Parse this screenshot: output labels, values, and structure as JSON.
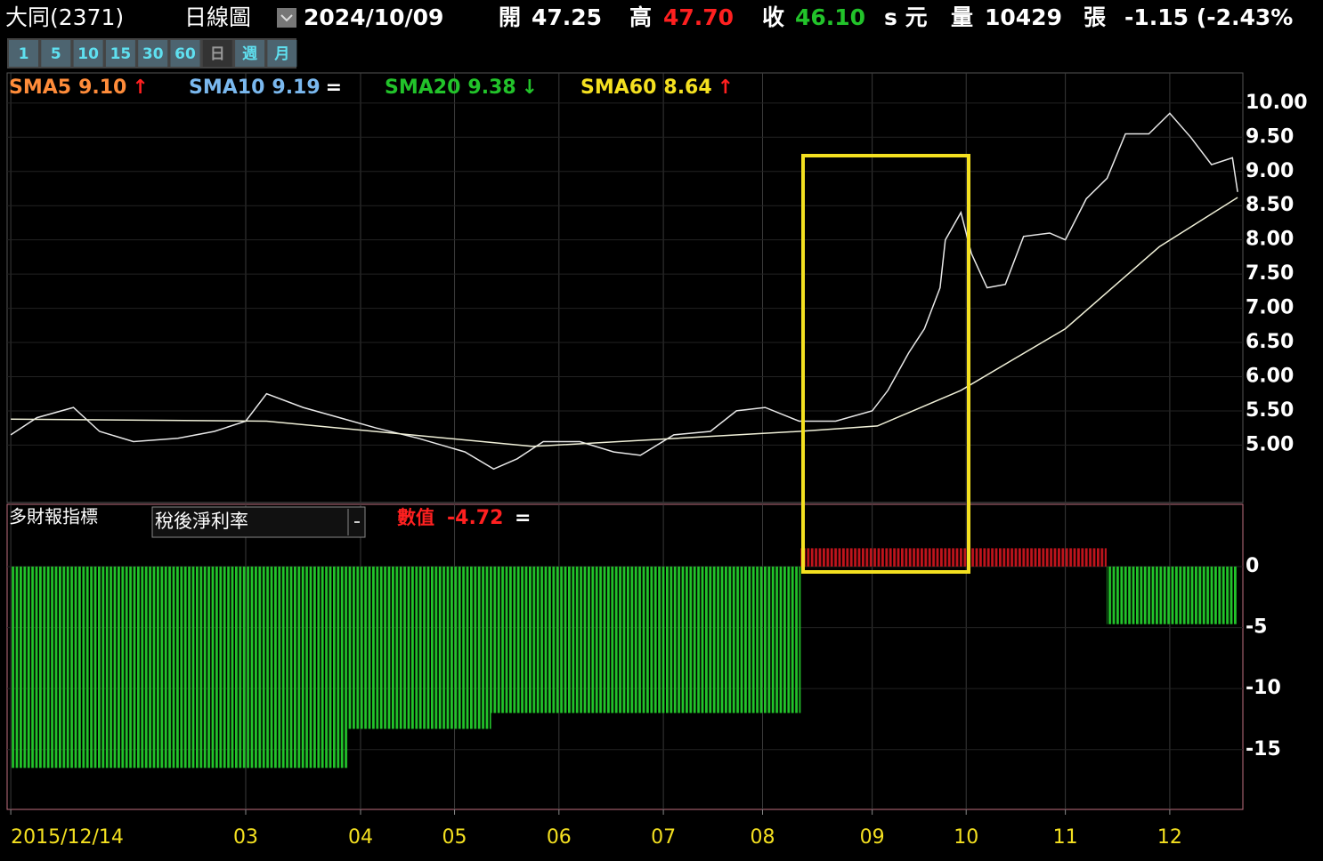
{
  "header": {
    "stock": "大同(2371)",
    "period": "日線圖",
    "date": "2024/10/09",
    "open_label": "開",
    "open": "47.25",
    "high_label": "高",
    "high": "47.70",
    "close_label": "收",
    "close": "46.10",
    "unit": "s 元",
    "volume_label": "量",
    "volume": "10429",
    "volume_unit": "張",
    "change": "-1.15 (-2.43%"
  },
  "toolbar": [
    "1",
    "5",
    "10",
    "15",
    "30",
    "60",
    "日",
    "週",
    "月"
  ],
  "chart_data": [
    {
      "type": "line",
      "readouts": [
        {
          "name": "SMA5",
          "value": "9.10",
          "arrow": "↑",
          "color": "#ff8c3a",
          "arrow_color": "#ff2020"
        },
        {
          "name": "SMA10",
          "value": "9.19",
          "arrow": "=",
          "color": "#7ab8ee",
          "arrow_color": "#ffffff"
        },
        {
          "name": "SMA20",
          "value": "9.38",
          "arrow": "↓",
          "color": "#22c32a",
          "arrow_color": "#22c32a"
        },
        {
          "name": "SMA60",
          "value": "8.64",
          "arrow": "↑",
          "color": "#f4e020",
          "arrow_color": "#ff2020"
        }
      ],
      "series": [
        {
          "color": "#e8e8e8",
          "x": [
            0,
            5,
            12,
            17,
            23.5,
            32,
            39,
            45,
            49,
            56,
            63,
            70,
            78,
            87,
            92.5,
            97,
            102,
            109,
            115.5,
            120.6,
            127,
            134,
            139,
            144.5,
            151,
            158,
            165,
            168,
            172,
            175,
            178,
            179,
            182,
            184,
            187,
            190.5,
            194,
            199,
            202,
            206,
            210,
            213.5,
            218,
            222,
            226,
            230,
            234,
            235
          ],
          "values": [
            5.15,
            5.4,
            5.55,
            5.2,
            5.05,
            5.1,
            5.2,
            5.35,
            5.75,
            5.55,
            5.4,
            5.25,
            5.1,
            4.9,
            4.65,
            4.8,
            5.05,
            5.05,
            4.9,
            4.85,
            5.15,
            5.2,
            5.5,
            5.55,
            5.35,
            5.35,
            5.5,
            5.8,
            6.35,
            6.7,
            7.3,
            8.0,
            8.4,
            7.8,
            7.3,
            7.35,
            8.05,
            8.1,
            8.0,
            8.6,
            8.9,
            9.55,
            9.55,
            9.85,
            9.5,
            9.1,
            9.2,
            8.7
          ]
        },
        {
          "color": "#f0f0d8",
          "x": [
            0,
            49,
            100,
            151,
            166,
            182,
            202,
            220,
            235
          ],
          "values": [
            5.38,
            5.35,
            4.98,
            5.2,
            5.28,
            5.8,
            6.7,
            7.9,
            8.62
          ]
        }
      ],
      "xlim": [
        -0.7,
        236
      ],
      "ylim": [
        4.16,
        10.44
      ],
      "yticks": [
        {
          "value": 10,
          "label": "10.00"
        },
        {
          "value": 9.5,
          "label": "9.50"
        },
        {
          "value": 9,
          "label": "9.00"
        },
        {
          "value": 8.5,
          "label": "8.50"
        },
        {
          "value": 8,
          "label": "8.00"
        },
        {
          "value": 7.5,
          "label": "7.50"
        },
        {
          "value": 7,
          "label": "7.00"
        },
        {
          "value": 6.5,
          "label": "6.50"
        },
        {
          "value": 6,
          "label": "6.00"
        },
        {
          "value": 5.5,
          "label": "5.50"
        },
        {
          "value": 5,
          "label": "5.00"
        }
      ],
      "grid": true
    },
    {
      "type": "histogram",
      "title": "多財報指標",
      "selector": "稅後淨利率",
      "value_label": "數值",
      "current": "-4.72",
      "trend": "=",
      "bins": [
        0,
        64.7,
        92,
        151.3,
        209.9,
        235
      ],
      "values": [
        -16.5,
        -13.3,
        -12.0,
        1.5,
        -4.72
      ],
      "positive_color": "#c0141c",
      "negative_color": "#22c32a",
      "xlim": [
        -0.7,
        236
      ],
      "ylim": [
        -19.9,
        5.1
      ],
      "yticks": [
        0,
        -5,
        -10,
        -15
      ],
      "xticks": [
        {
          "value": 0,
          "label": "2015/12/14"
        },
        {
          "value": 45,
          "label": "03"
        },
        {
          "value": 67,
          "label": "04"
        },
        {
          "value": 85,
          "label": "05"
        },
        {
          "value": 105,
          "label": "06"
        },
        {
          "value": 125,
          "label": "07"
        },
        {
          "value": 144,
          "label": "08"
        },
        {
          "value": 165,
          "label": "09"
        },
        {
          "value": 183,
          "label": "10"
        },
        {
          "value": 202,
          "label": "11"
        },
        {
          "value": 222,
          "label": "12"
        }
      ],
      "grid": true
    }
  ]
}
